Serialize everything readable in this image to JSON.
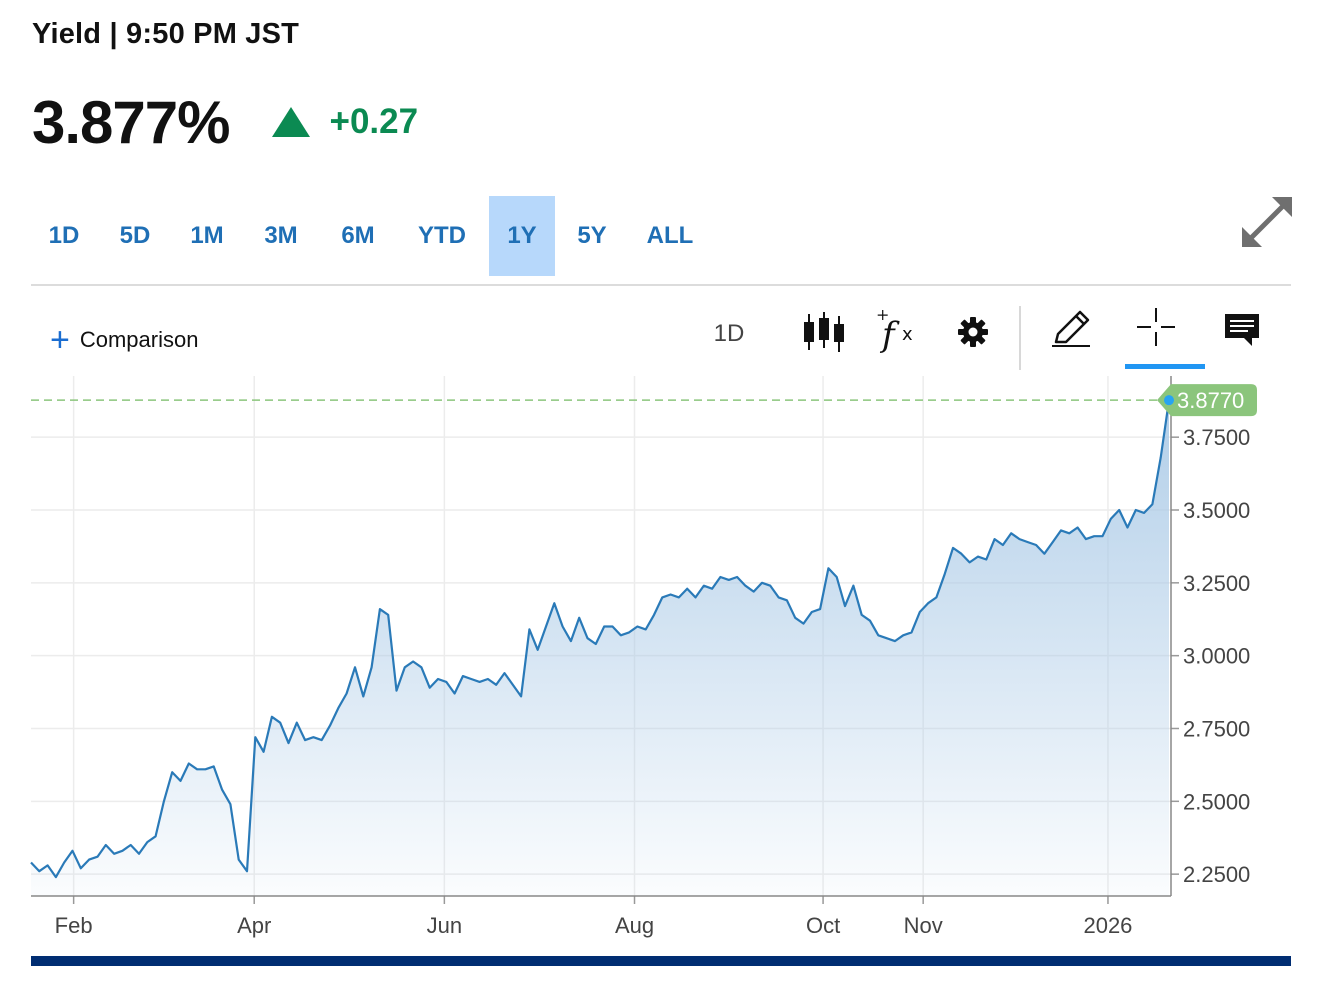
{
  "header": {
    "title": "Yield | 9:50 PM JST",
    "price": "3.877%",
    "change": "+0.27",
    "change_color": "#0b8a52"
  },
  "ranges": {
    "items": [
      "1D",
      "5D",
      "1M",
      "3M",
      "6M",
      "YTD",
      "1Y",
      "5Y",
      "ALL"
    ],
    "active": "1Y"
  },
  "toolbar": {
    "comparison_label": "Comparison",
    "interval_label": "1D",
    "icons": [
      "candlestick-icon",
      "function-icon",
      "gear-icon",
      "pencil-icon",
      "crosshair-icon",
      "comment-icon"
    ],
    "active_tool": "crosshair-icon",
    "accent": "#2196f3"
  },
  "chart_data": {
    "type": "area",
    "series": [
      {
        "values": [
          2.29,
          2.26,
          2.28,
          2.24,
          2.29,
          2.33,
          2.27,
          2.3,
          2.31,
          2.35,
          2.32,
          2.33,
          2.35,
          2.32,
          2.36,
          2.38,
          2.5,
          2.6,
          2.57,
          2.63,
          2.61,
          2.61,
          2.62,
          2.54,
          2.49,
          2.3,
          2.26,
          2.72,
          2.67,
          2.79,
          2.77,
          2.7,
          2.77,
          2.71,
          2.72,
          2.71,
          2.76,
          2.82,
          2.87,
          2.96,
          2.86,
          2.96,
          3.16,
          3.14,
          2.88,
          2.96,
          2.98,
          2.96,
          2.89,
          2.92,
          2.91,
          2.87,
          2.93,
          2.92,
          2.91,
          2.92,
          2.9,
          2.94,
          2.9,
          2.86,
          3.09,
          3.02,
          3.1,
          3.18,
          3.1,
          3.05,
          3.13,
          3.06,
          3.04,
          3.1,
          3.1,
          3.07,
          3.08,
          3.1,
          3.09,
          3.14,
          3.2,
          3.21,
          3.2,
          3.23,
          3.2,
          3.24,
          3.23,
          3.27,
          3.26,
          3.27,
          3.24,
          3.22,
          3.25,
          3.24,
          3.2,
          3.19,
          3.13,
          3.11,
          3.15,
          3.16,
          3.3,
          3.27,
          3.17,
          3.24,
          3.14,
          3.12,
          3.07,
          3.06,
          3.05,
          3.07,
          3.08,
          3.15,
          3.18,
          3.2,
          3.28,
          3.37,
          3.35,
          3.32,
          3.34,
          3.33,
          3.4,
          3.38,
          3.42,
          3.4,
          3.39,
          3.38,
          3.35,
          3.39,
          3.43,
          3.42,
          3.44,
          3.4,
          3.41,
          3.41,
          3.47,
          3.5,
          3.44,
          3.5,
          3.49,
          3.52,
          3.68,
          3.877
        ]
      }
    ],
    "x_ticks": [
      "Feb",
      "Apr",
      "Jun",
      "Aug",
      "Oct",
      "Nov",
      "2026"
    ],
    "x_tick_positions": [
      0.0374,
      0.1958,
      0.3626,
      0.5294,
      0.6948,
      0.7826,
      0.9447
    ],
    "y_ticks": [
      2.25,
      2.5,
      2.75,
      3.0,
      3.25,
      3.5,
      3.75
    ],
    "y_tick_labels": [
      "2.2500",
      "2.5000",
      "2.7500",
      "3.0000",
      "3.2500",
      "3.5000",
      "3.7500"
    ],
    "ylim": [
      2.175,
      3.96
    ],
    "last_value": 3.877,
    "last_label": "3.8770",
    "grid": true,
    "line_color": "#2a7ab8",
    "fill_color": "#a9c9e6",
    "last_badge_color": "#8bc57c",
    "reference_line_color": "#8bc57c"
  }
}
